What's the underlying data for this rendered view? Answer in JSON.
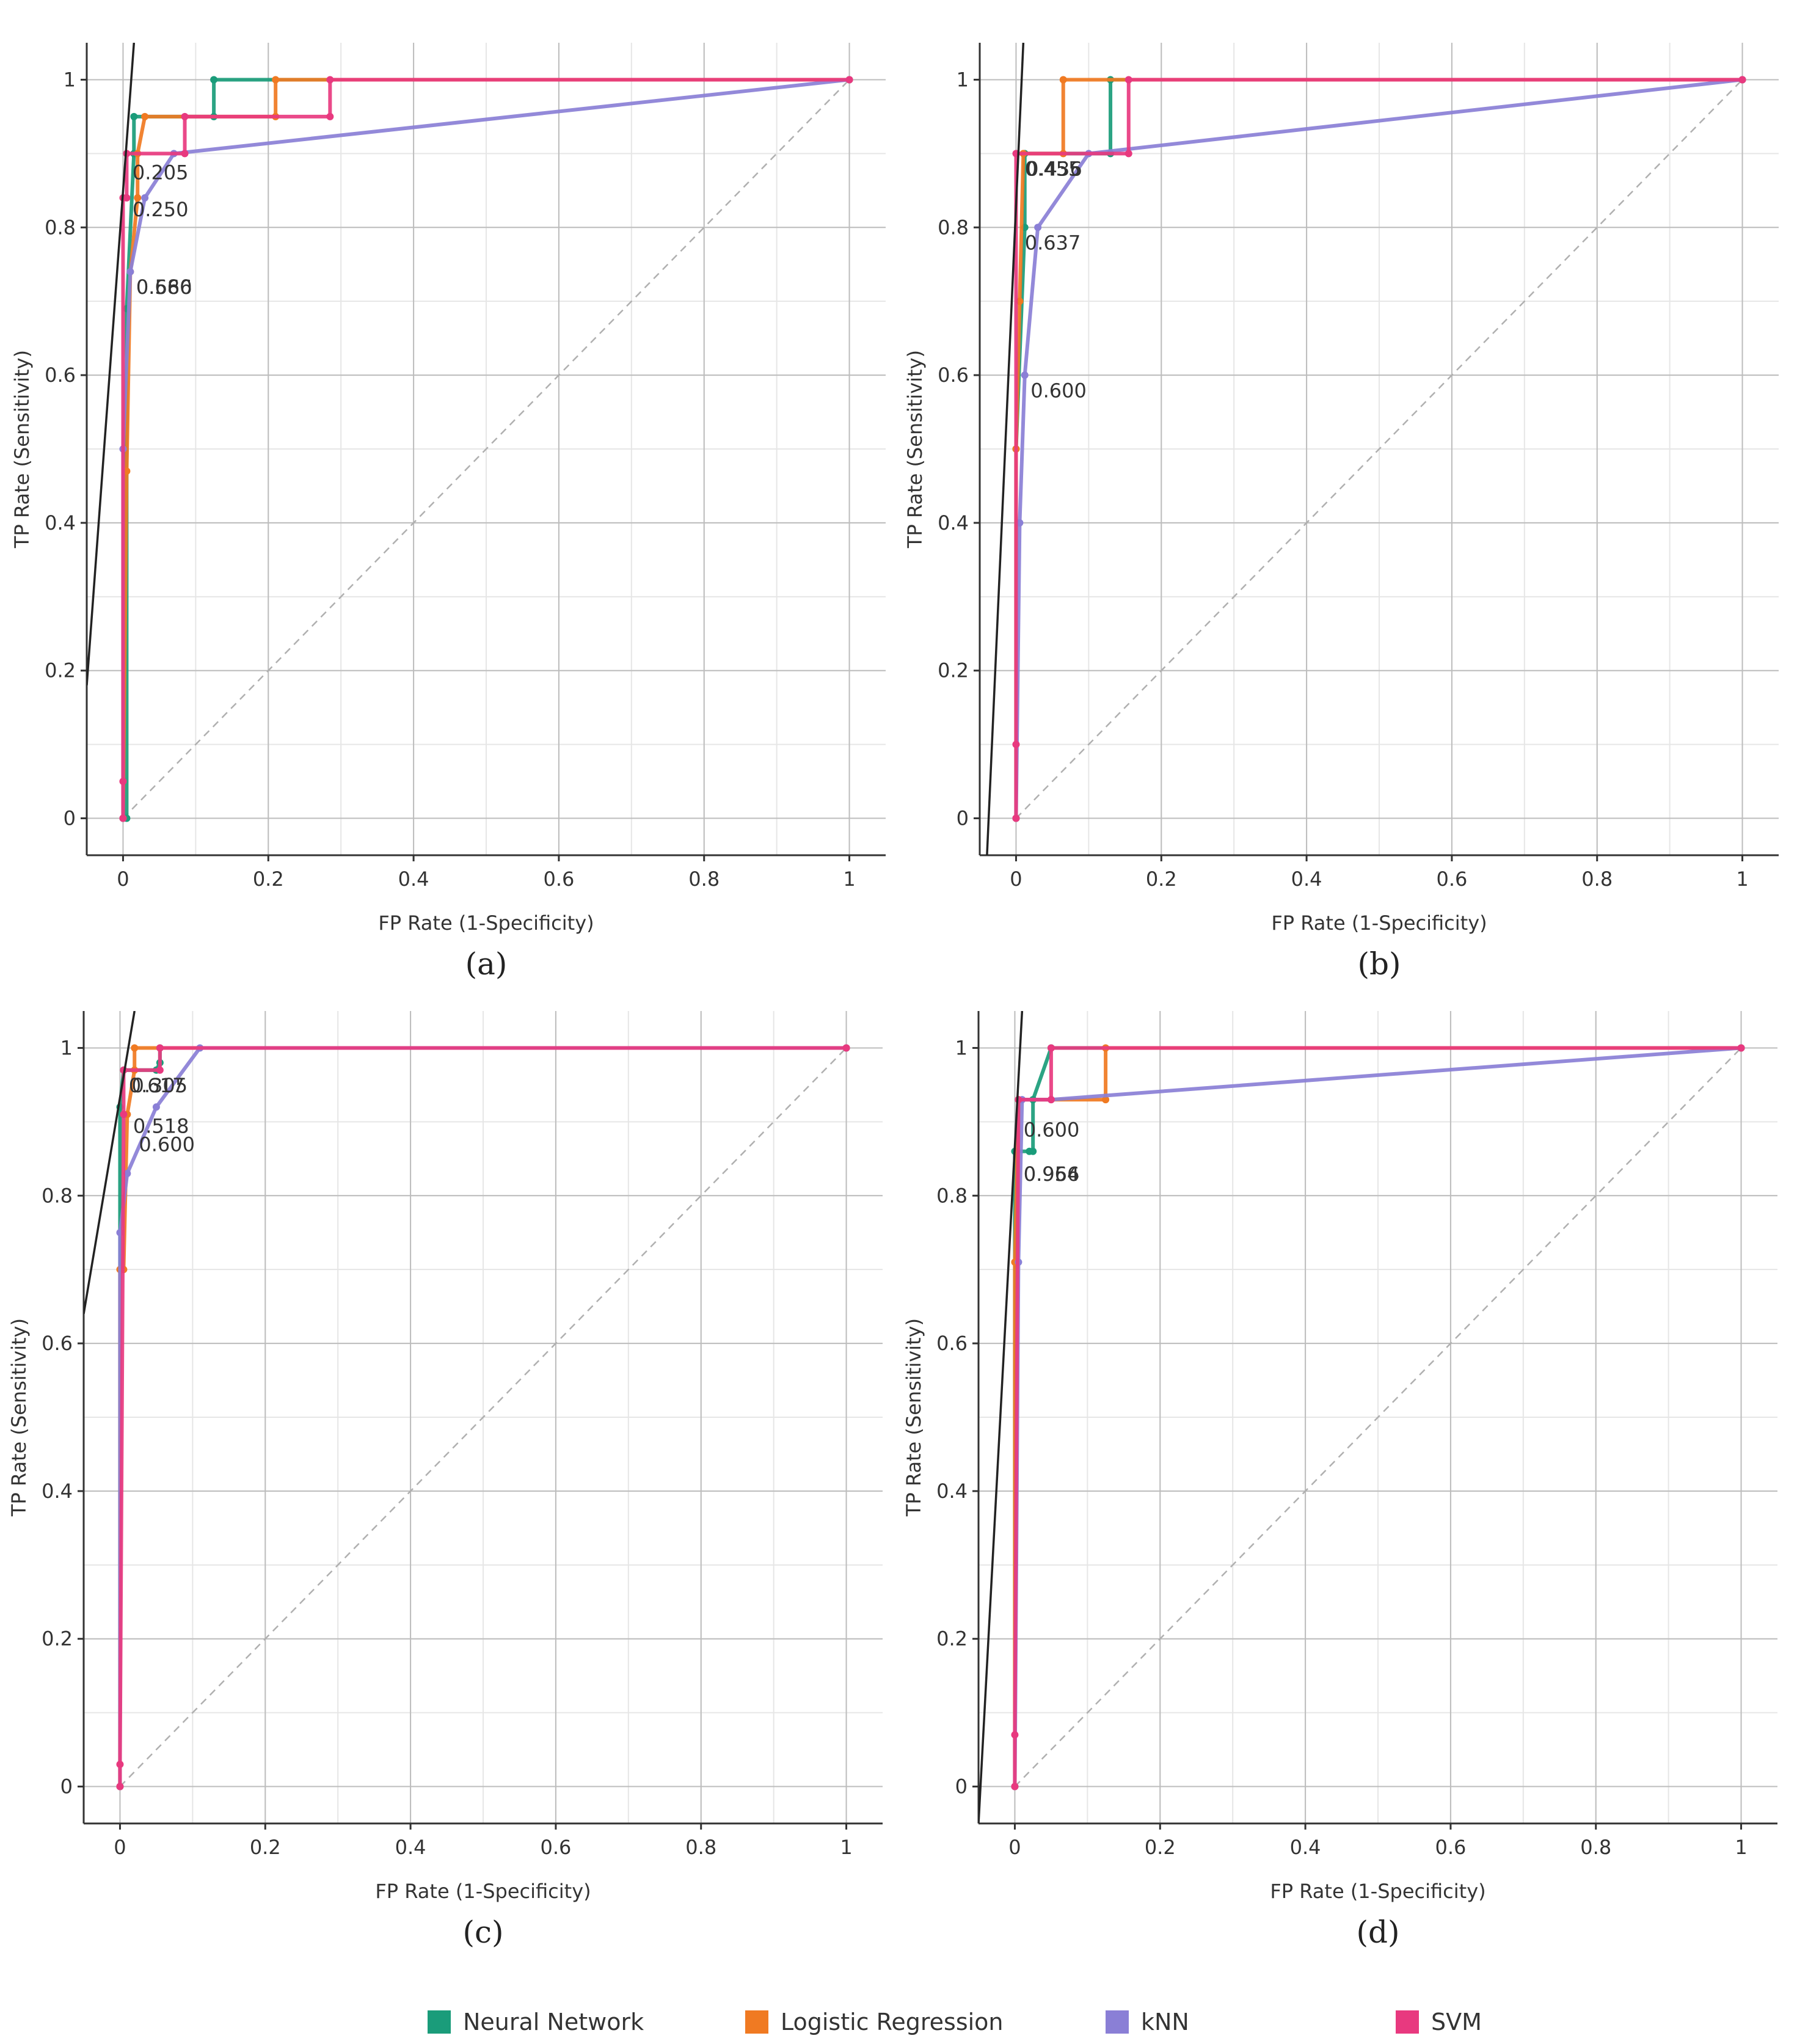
{
  "figure": {
    "xlabel": "FP Rate (1-Specificity)",
    "ylabel": "TP Rate (Sensitivity)",
    "tick_labels": [
      "0",
      "0.2",
      "0.4",
      "0.6",
      "0.8",
      "1"
    ]
  },
  "legend": [
    {
      "name": "Neural Network",
      "color": "#1a9c7a"
    },
    {
      "name": "Logistic Regression",
      "color": "#f07a22"
    },
    {
      "name": "kNN",
      "color": "#8a7fd6"
    },
    {
      "name": "SVM",
      "color": "#e8397f"
    }
  ],
  "chart_data": [
    {
      "type": "line",
      "panel": "(a)",
      "xlabel": "FP Rate (1-Specificity)",
      "ylabel": "TP Rate (Sensitivity)",
      "xlim": [
        -0.05,
        1.05
      ],
      "ylim": [
        -0.05,
        1.05
      ],
      "xticks": [
        0,
        0.2,
        0.4,
        0.6,
        0.8,
        1
      ],
      "yticks": [
        0,
        0.2,
        0.4,
        0.6,
        0.8,
        1
      ],
      "diagonal": true,
      "series": [
        {
          "name": "Neural Network",
          "color": "#1a9c7a",
          "x": [
            0,
            0.005,
            0.005,
            0.015,
            0.015,
            0.125,
            0.125,
            1
          ],
          "y": [
            0,
            0,
            0.69,
            0.9,
            0.95,
            0.95,
            1,
            1
          ]
        },
        {
          "name": "Logistic Regression",
          "color": "#f07a22",
          "x": [
            0,
            0.005,
            0.01,
            0.02,
            0.02,
            0.03,
            0.21,
            0.21,
            1
          ],
          "y": [
            0,
            0.47,
            0.74,
            0.84,
            0.9,
            0.95,
            0.95,
            1,
            1
          ]
        },
        {
          "name": "kNN",
          "color": "#8a7fd6",
          "x": [
            0,
            0,
            0.01,
            0.03,
            0.07,
            1
          ],
          "y": [
            0,
            0.5,
            0.74,
            0.84,
            0.9,
            1
          ]
        },
        {
          "name": "SVM",
          "color": "#e8397f",
          "x": [
            0,
            0,
            0,
            0.005,
            0.005,
            0.085,
            0.085,
            0.285,
            0.285,
            1
          ],
          "y": [
            0,
            0.05,
            0.84,
            0.84,
            0.9,
            0.9,
            0.95,
            0.95,
            1,
            1
          ]
        }
      ],
      "threshold_line": {
        "x": [
          -0.05,
          0.015
        ],
        "y": [
          0.18,
          1.05
        ]
      },
      "annotations": [
        {
          "text": "0.205",
          "x": 0.013,
          "y": 0.865
        },
        {
          "text": "0.250",
          "x": 0.013,
          "y": 0.815
        },
        {
          "text": "0.666",
          "x": 0.018,
          "y": 0.71
        },
        {
          "text": "0.580",
          "x": 0.018,
          "y": 0.71
        }
      ]
    },
    {
      "type": "line",
      "panel": "(b)",
      "xlabel": "FP Rate (1-Specificity)",
      "ylabel": "TP Rate (Sensitivity)",
      "xlim": [
        -0.05,
        1.05
      ],
      "ylim": [
        -0.05,
        1.05
      ],
      "xticks": [
        0,
        0.2,
        0.4,
        0.6,
        0.8,
        1
      ],
      "yticks": [
        0,
        0.2,
        0.4,
        0.6,
        0.8,
        1
      ],
      "diagonal": true,
      "series": [
        {
          "name": "Neural Network",
          "color": "#1a9c7a",
          "x": [
            0,
            0,
            0.012,
            0.012,
            0.13,
            0.13,
            1
          ],
          "y": [
            0,
            0.5,
            0.8,
            0.9,
            0.9,
            1,
            1
          ]
        },
        {
          "name": "Logistic Regression",
          "color": "#f07a22",
          "x": [
            0,
            0,
            0.005,
            0.01,
            0.065,
            0.065,
            1
          ],
          "y": [
            0,
            0.5,
            0.7,
            0.9,
            0.9,
            1,
            1
          ]
        },
        {
          "name": "kNN",
          "color": "#8a7fd6",
          "x": [
            0,
            0.005,
            0.012,
            0.03,
            0.1,
            1
          ],
          "y": [
            0,
            0.4,
            0.6,
            0.8,
            0.9,
            1
          ]
        },
        {
          "name": "SVM",
          "color": "#e8397f",
          "x": [
            0,
            0,
            0,
            0.155,
            0.155,
            1
          ],
          "y": [
            0,
            0.1,
            0.9,
            0.9,
            1,
            1
          ]
        }
      ],
      "threshold_line": {
        "x": [
          -0.04,
          0.01
        ],
        "y": [
          -0.05,
          1.05
        ]
      },
      "annotations": [
        {
          "text": "0.455",
          "x": 0.012,
          "y": 0.87
        },
        {
          "text": "0.436",
          "x": 0.014,
          "y": 0.87
        },
        {
          "text": "0.637",
          "x": 0.012,
          "y": 0.77
        },
        {
          "text": "0.600",
          "x": 0.02,
          "y": 0.57
        }
      ]
    },
    {
      "type": "line",
      "panel": "(c)",
      "xlabel": "FP Rate (1-Specificity)",
      "ylabel": "TP Rate (Sensitivity)",
      "xlim": [
        -0.05,
        1.05
      ],
      "ylim": [
        -0.05,
        1.05
      ],
      "xticks": [
        0,
        0.2,
        0.4,
        0.6,
        0.8,
        1
      ],
      "yticks": [
        0,
        0.2,
        0.4,
        0.6,
        0.8,
        1
      ],
      "diagonal": true,
      "series": [
        {
          "name": "Neural Network",
          "color": "#1a9c7a",
          "x": [
            0,
            0,
            0.005,
            0.05,
            0.055,
            0.055,
            1
          ],
          "y": [
            0,
            0.92,
            0.97,
            0.97,
            0.98,
            1,
            1
          ]
        },
        {
          "name": "Logistic Regression",
          "color": "#f07a22",
          "x": [
            0,
            0,
            0.005,
            0.01,
            0.02,
            0.02,
            1
          ],
          "y": [
            0,
            0.7,
            0.7,
            0.91,
            0.97,
            1,
            1
          ]
        },
        {
          "name": "kNN",
          "color": "#8a7fd6",
          "x": [
            0,
            0,
            0.01,
            0.05,
            0.11,
            1
          ],
          "y": [
            0,
            0.75,
            0.83,
            0.92,
            1,
            1
          ]
        },
        {
          "name": "SVM",
          "color": "#e8397f",
          "x": [
            0,
            0,
            0.005,
            0.005,
            0.055,
            0.055,
            1
          ],
          "y": [
            0,
            0.03,
            0.91,
            0.97,
            0.97,
            1,
            1
          ]
        }
      ],
      "threshold_line": {
        "x": [
          -0.05,
          0.02
        ],
        "y": [
          0.64,
          1.05
        ]
      },
      "annotations": [
        {
          "text": "0.617",
          "x": 0.012,
          "y": 0.94
        },
        {
          "text": "0.305",
          "x": 0.016,
          "y": 0.94
        },
        {
          "text": "0.518",
          "x": 0.018,
          "y": 0.885
        },
        {
          "text": "0.600",
          "x": 0.026,
          "y": 0.86
        }
      ]
    },
    {
      "type": "line",
      "panel": "(d)",
      "xlabel": "FP Rate (1-Specificity)",
      "ylabel": "TP Rate (Sensitivity)",
      "xlim": [
        -0.05,
        1.05
      ],
      "ylim": [
        -0.05,
        1.05
      ],
      "xticks": [
        0,
        0.2,
        0.4,
        0.6,
        0.8,
        1
      ],
      "yticks": [
        0,
        0.2,
        0.4,
        0.6,
        0.8,
        1
      ],
      "diagonal": true,
      "series": [
        {
          "name": "Neural Network",
          "color": "#1a9c7a",
          "x": [
            0,
            0,
            0.02,
            0.025,
            0.025,
            0.05,
            1
          ],
          "y": [
            0,
            0.86,
            0.86,
            0.86,
            0.93,
            1,
            1
          ]
        },
        {
          "name": "Logistic Regression",
          "color": "#f07a22",
          "x": [
            0,
            0,
            0.005,
            0.125,
            0.125,
            1
          ],
          "y": [
            0,
            0.71,
            0.93,
            0.93,
            1,
            1
          ]
        },
        {
          "name": "kNN",
          "color": "#8a7fd6",
          "x": [
            0,
            0.005,
            0.01,
            0.05,
            1
          ],
          "y": [
            0,
            0.71,
            0.93,
            0.93,
            1
          ]
        },
        {
          "name": "SVM",
          "color": "#e8397f",
          "x": [
            0,
            0,
            0.005,
            0.05,
            0.05,
            1
          ],
          "y": [
            0,
            0.07,
            0.93,
            0.93,
            1,
            1
          ]
        }
      ],
      "threshold_line": {
        "x": [
          -0.05,
          0.01
        ],
        "y": [
          -0.05,
          1.05
        ]
      },
      "annotations": [
        {
          "text": "0.600",
          "x": 0.012,
          "y": 0.88
        },
        {
          "text": "0.954",
          "x": 0.012,
          "y": 0.82
        },
        {
          "text": "0.966",
          "x": 0.012,
          "y": 0.82
        }
      ]
    }
  ]
}
